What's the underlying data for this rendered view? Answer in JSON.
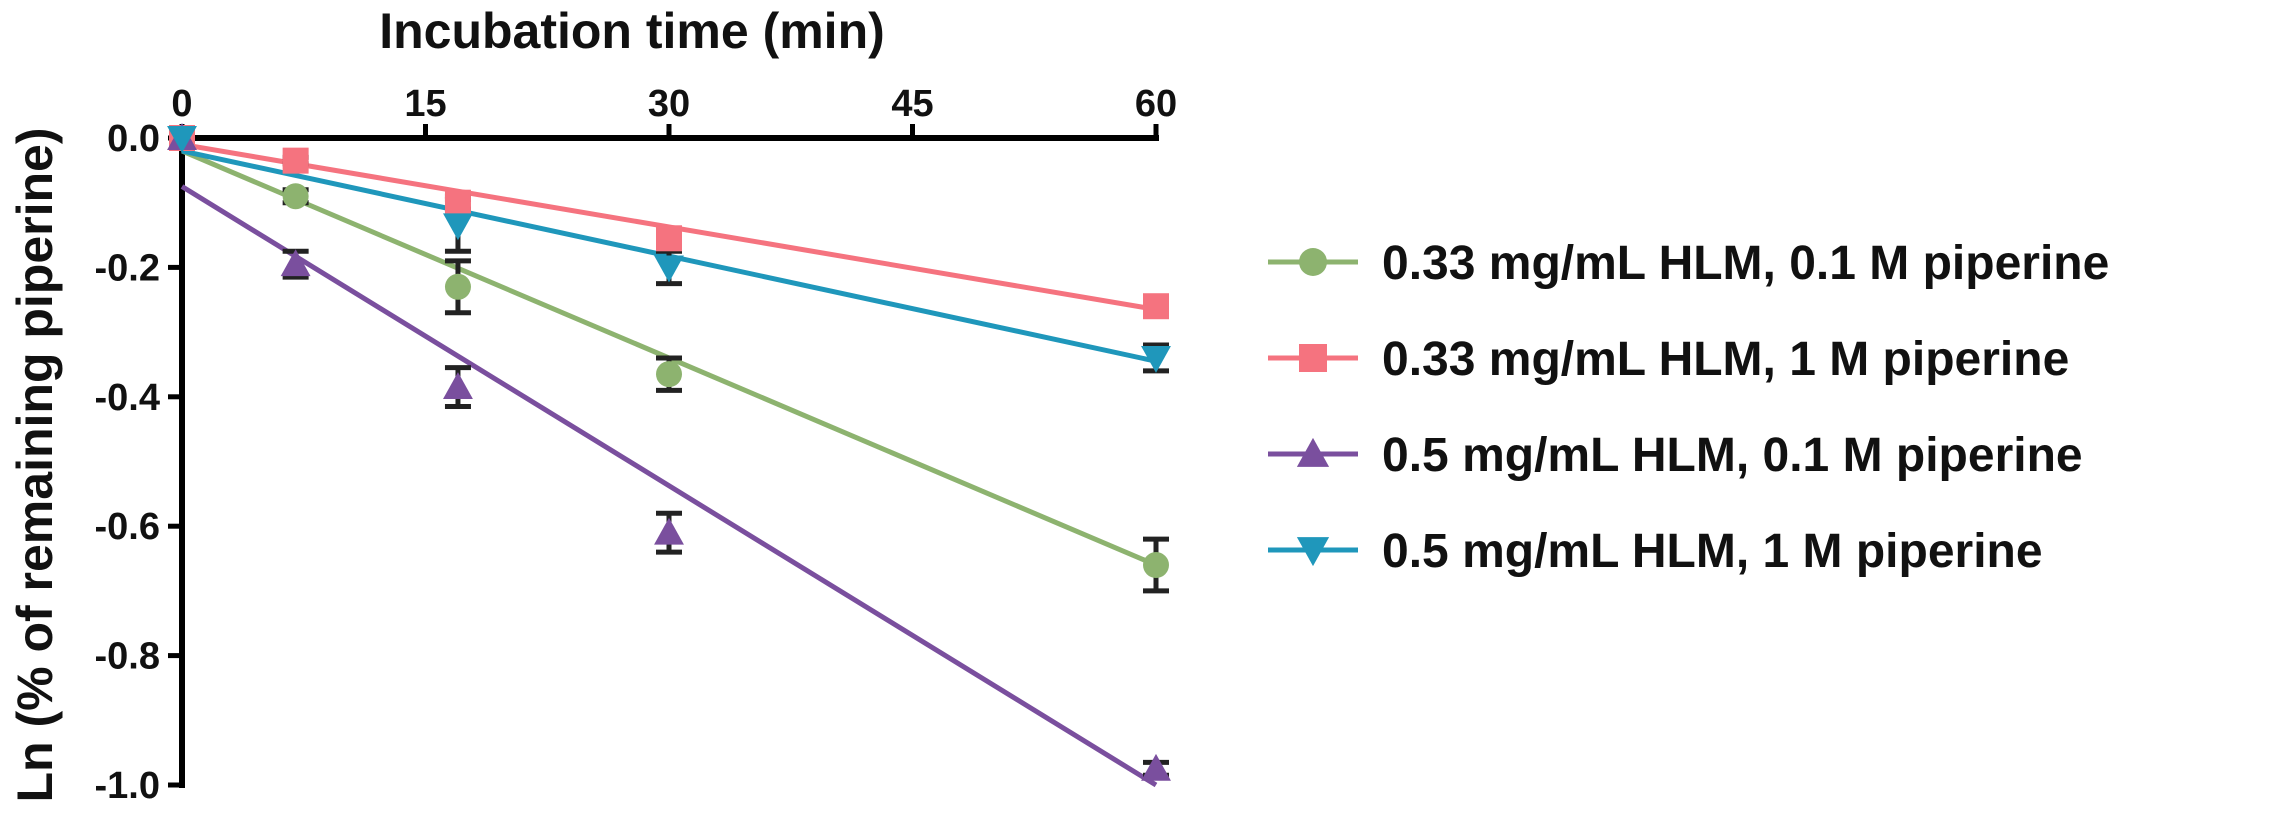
{
  "chart_data": {
    "type": "scatter",
    "title": "",
    "xlabel": "Incubation time (min)",
    "ylabel": "Ln (% of remaining piperine)",
    "xlim": [
      0,
      60
    ],
    "ylim": [
      -1.0,
      0.0
    ],
    "xticks": [
      0,
      15,
      30,
      45,
      60
    ],
    "xtick_labels": [
      "0",
      "15",
      "30",
      "45",
      "60"
    ],
    "yticks": [
      0.0,
      -0.2,
      -0.4,
      -0.6,
      -0.8,
      -1.0
    ],
    "ytick_labels": [
      "0.0",
      "-0.2",
      "-0.4",
      "-0.6",
      "-0.8",
      "-1.0"
    ],
    "x_axis_position": "top",
    "legend_position": "right",
    "series": [
      {
        "name": "0.33 mg/mL HLM, 0.1 M piperine",
        "color": "#8db36f",
        "marker": "circle",
        "x": [
          0,
          7,
          17,
          30,
          60
        ],
        "y": [
          0.0,
          -0.09,
          -0.23,
          -0.365,
          -0.66
        ],
        "err": [
          0.0,
          0.01,
          0.04,
          0.025,
          0.04
        ],
        "fit": {
          "x": [
            0,
            60
          ],
          "y": [
            -0.02,
            -0.66
          ]
        }
      },
      {
        "name": "0.33 mg/mL HLM, 1 M piperine",
        "color": "#f5737f",
        "marker": "square",
        "x": [
          0,
          7,
          17,
          30,
          60
        ],
        "y": [
          0.0,
          -0.035,
          -0.1,
          -0.155,
          -0.26
        ],
        "err": [
          0.0,
          0.005,
          0.01,
          0.01,
          0.01
        ],
        "fit": {
          "x": [
            0,
            60
          ],
          "y": [
            -0.01,
            -0.265
          ]
        }
      },
      {
        "name": "0.5 mg/mL HLM, 0.1 M piperine",
        "color": "#7a4f9e",
        "marker": "triangle-up",
        "x": [
          0,
          7,
          17,
          30,
          60
        ],
        "y": [
          0.0,
          -0.195,
          -0.385,
          -0.61,
          -0.975
        ],
        "err": [
          0.0,
          0.02,
          0.03,
          0.03,
          0.01
        ],
        "fit": {
          "x": [
            0,
            60
          ],
          "y": [
            -0.075,
            -1.0
          ]
        }
      },
      {
        "name": "0.5 mg/mL HLM, 1 M piperine",
        "color": "#1f97bb",
        "marker": "triangle-down",
        "x": [
          0,
          17,
          30,
          60
        ],
        "y": [
          0.0,
          -0.135,
          -0.2,
          -0.34
        ],
        "err": [
          0.0,
          0.04,
          0.025,
          0.02
        ],
        "fit": {
          "x": [
            0,
            60
          ],
          "y": [
            -0.02,
            -0.345
          ]
        }
      }
    ]
  }
}
